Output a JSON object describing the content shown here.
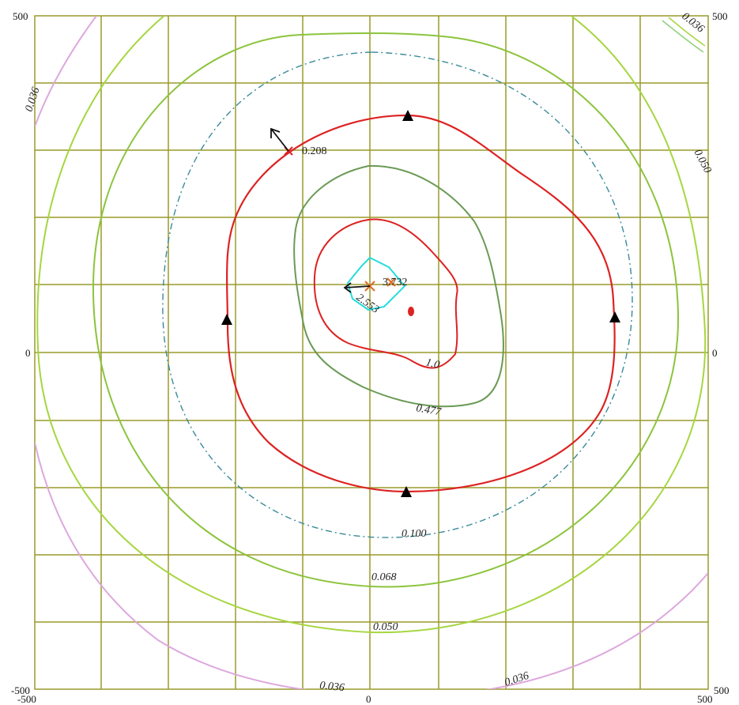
{
  "axes": {
    "x_ticks": [
      "-500",
      "0",
      "500"
    ],
    "y_ticks_left": [
      "500",
      "0",
      "-500"
    ],
    "y_ticks_right": [
      "500",
      "0",
      "500"
    ]
  },
  "contour_labels": {
    "c_0036_top_left": "0.036",
    "c_0036_top_right": "0.036",
    "c_0050_right": "0.050",
    "c_0100": "0.100",
    "c_0068": "0.068",
    "c_0050_bottom": "0.050",
    "c_0036_bottom_left": "0.036",
    "c_0036_bottom_right": "0.036",
    "c_0477": "0.477",
    "c_10": "1.0",
    "c_2553": "2.553"
  },
  "point_labels": {
    "p_0208": "0.208",
    "p_3732": "3.732"
  },
  "colors": {
    "grid": "#9a9a2a",
    "red": "#dd2222",
    "cyan": "#22dddd",
    "dark_green": "#6a9a55",
    "mid_green": "#8cc43c",
    "light_green": "#a6d640",
    "pink": "#dda8dd",
    "dashdot": "#3a8a9a",
    "marker": "#000000"
  }
}
